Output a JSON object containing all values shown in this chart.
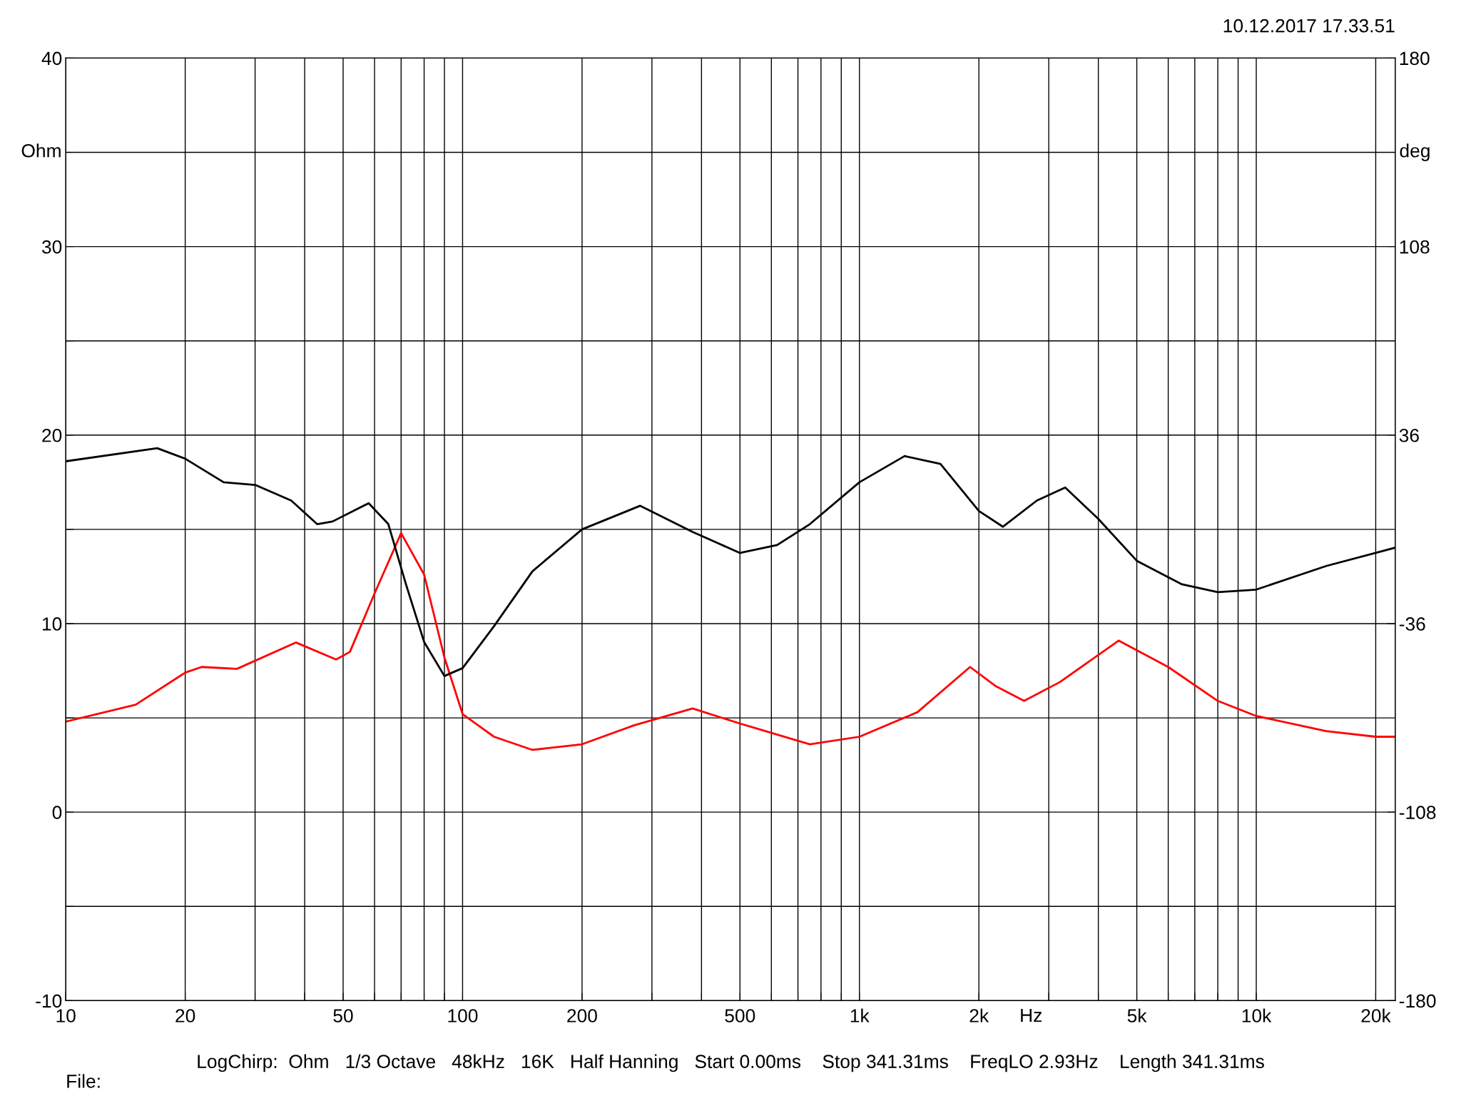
{
  "chart_data": {
    "type": "line",
    "xlabel": "Hz",
    "ylabel": "Ohm",
    "y2label": "deg",
    "log": "x",
    "grid": true,
    "line_style": "solid",
    "marker": "none",
    "xlim": [
      10,
      22400
    ],
    "xticks": [
      10,
      20,
      {
        "value": 30,
        "label": null
      },
      {
        "value": 40,
        "label": null
      },
      50,
      {
        "value": 60,
        "label": null
      },
      {
        "value": 70,
        "label": null
      },
      {
        "value": 80,
        "label": null
      },
      {
        "value": 90,
        "label": null
      },
      100,
      200,
      {
        "value": 300,
        "label": null
      },
      {
        "value": 400,
        "label": null
      },
      500,
      {
        "value": 600,
        "label": null
      },
      {
        "value": 700,
        "label": null
      },
      {
        "value": 800,
        "label": null
      },
      {
        "value": 900,
        "label": null
      },
      {
        "value": 1000,
        "label": "1k"
      },
      {
        "value": 2000,
        "label": "2k"
      },
      {
        "value": 3000,
        "label": null
      },
      {
        "value": 4000,
        "label": null
      },
      {
        "value": 5000,
        "label": "5k"
      },
      {
        "value": 6000,
        "label": null
      },
      {
        "value": 7000,
        "label": null
      },
      {
        "value": 8000,
        "label": null
      },
      {
        "value": 9000,
        "label": null
      },
      {
        "value": 10000,
        "label": "10k"
      },
      {
        "value": 20000,
        "label": "20k"
      }
    ],
    "ylim": [
      -10,
      40
    ],
    "yticks": [
      -10,
      {
        "value": -5,
        "label": null
      },
      0,
      {
        "value": 5,
        "label": null
      },
      10,
      {
        "value": 15,
        "label": null
      },
      20,
      {
        "value": 25,
        "label": null
      },
      30,
      {
        "value": 35,
        "label": null
      },
      40
    ],
    "y2lim": [
      -180,
      180
    ],
    "y2ticks": [
      -180,
      -108,
      -36,
      36,
      108,
      180
    ],
    "series": [
      {
        "color": "#ff0000",
        "x": [
          10,
          15,
          20,
          22,
          27,
          38,
          48,
          52,
          60,
          70,
          80,
          90,
          100,
          120,
          150,
          200,
          270,
          380,
          500,
          750,
          1000,
          1400,
          1900,
          2200,
          2600,
          3200,
          4500,
          6000,
          8000,
          10000,
          15000,
          20000,
          22400
        ],
        "values": [
          4.8,
          5.7,
          7.4,
          7.7,
          7.6,
          9.0,
          8.1,
          8.5,
          11.6,
          14.8,
          12.6,
          8.2,
          5.2,
          4.0,
          3.3,
          3.6,
          4.6,
          5.5,
          4.7,
          3.6,
          4.0,
          5.3,
          7.7,
          6.7,
          5.9,
          6.9,
          9.1,
          7.7,
          5.9,
          5.1,
          4.3,
          4.0,
          4.0
        ]
      },
      {
        "color": "#000000",
        "axis": "y2",
        "x": [
          10,
          17,
          20,
          25,
          30,
          37,
          43,
          47,
          58,
          65,
          72,
          80,
          90,
          100,
          120,
          150,
          200,
          280,
          380,
          500,
          620,
          750,
          1000,
          1300,
          1600,
          2000,
          2300,
          2800,
          3300,
          4000,
          5000,
          6500,
          8000,
          10000,
          15000,
          22400
        ],
        "values": [
          26,
          31,
          27,
          18,
          17,
          11,
          2,
          3,
          10,
          2,
          -21,
          -43,
          -56,
          -53,
          -37,
          -16,
          0,
          9,
          -1,
          -9,
          -6,
          2,
          18,
          28,
          25,
          7,
          1,
          11,
          16,
          4,
          -12,
          -21,
          -24,
          -23,
          -14,
          -7
        ]
      }
    ],
    "annotations": [
      "10.12.2017 17.33.51",
      "LogChirp:  Ohm   1/3 Octave   48kHz   16K   Half Hanning   Start 0.00ms    Stop 341.31ms    FreqLO 2.93Hz    Length 341.31ms",
      "File:"
    ]
  }
}
